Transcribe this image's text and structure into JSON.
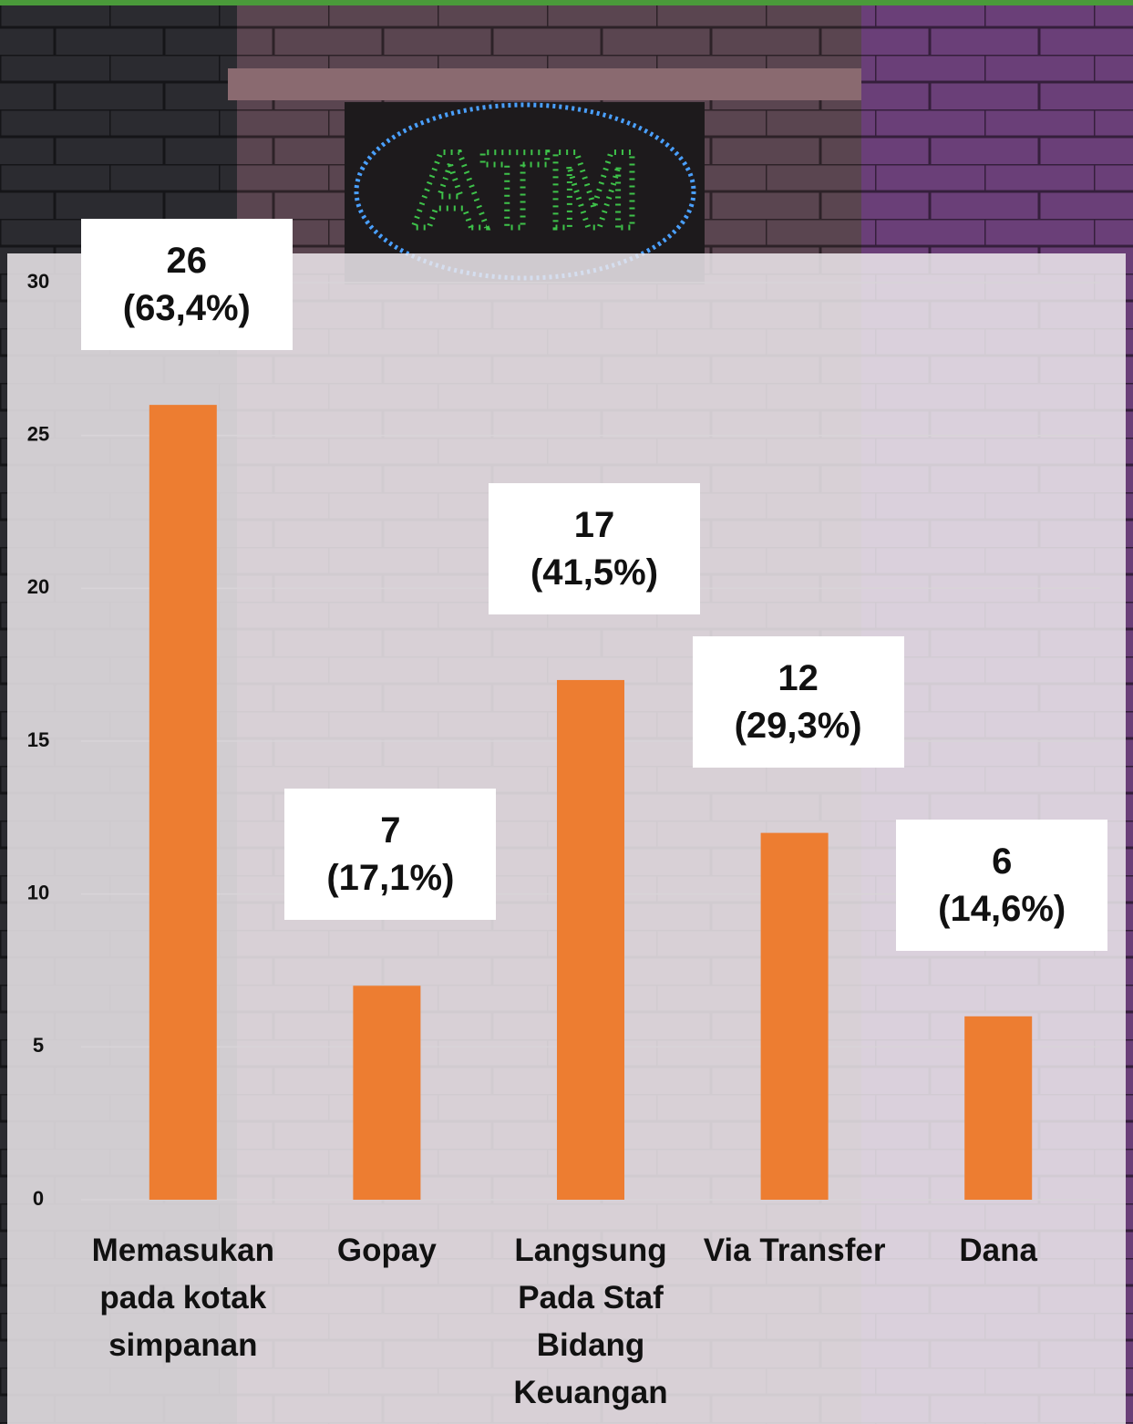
{
  "chart_data": {
    "type": "bar",
    "categories": [
      "Memasukan pada kotak simpanan",
      "Gopay",
      "Langsung Pada Staf Bidang Keuangan",
      "Via Transfer",
      "Dana"
    ],
    "values": [
      26,
      7,
      17,
      12,
      6
    ],
    "value_labels": [
      "26\n(63,4%)",
      "7\n(17,1%)",
      "17\n(41,5%)",
      "12\n(29,3%)",
      "6\n(14,6%)"
    ],
    "color": "#ed7d31",
    "ylim": [
      0,
      30
    ],
    "yticks": [
      0,
      5,
      10,
      15,
      20,
      25,
      30
    ],
    "grid": true
  }
}
